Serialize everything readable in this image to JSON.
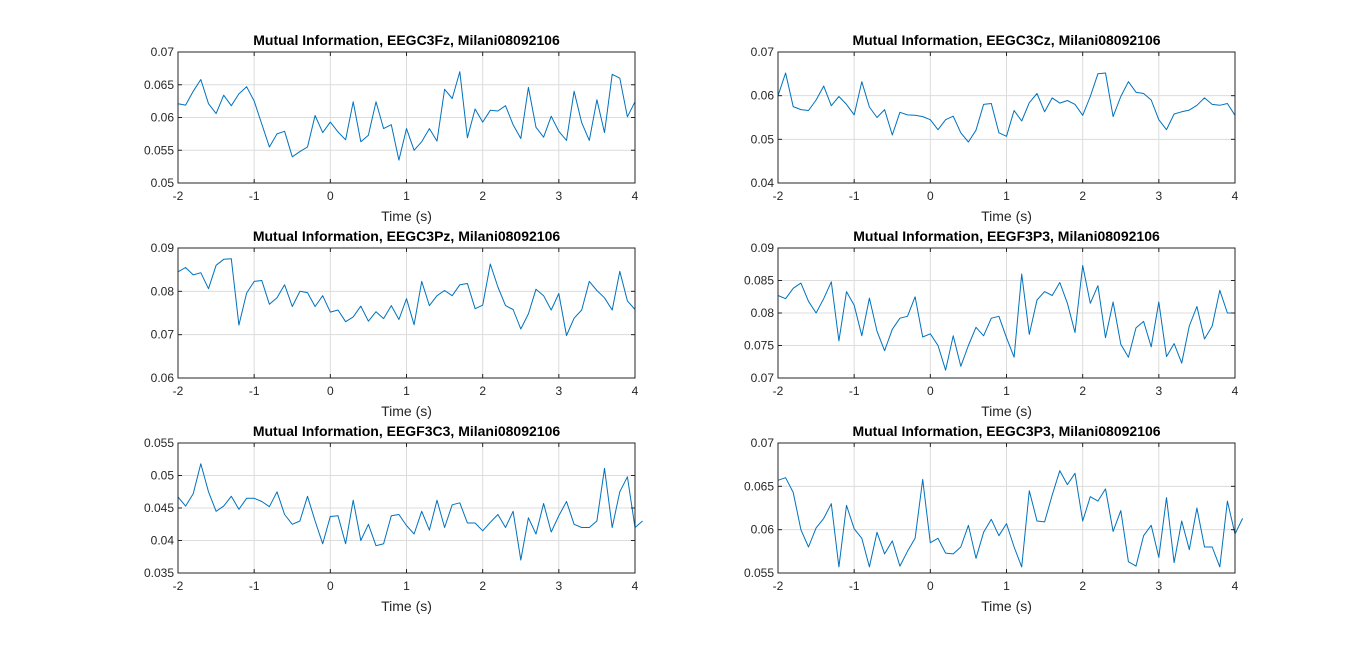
{
  "figure": {
    "background": "#ffffff",
    "line_color": "#0072bd",
    "grid_color": "#dcdcdc",
    "axis_color": "#262626"
  },
  "chart_data": [
    {
      "type": "line",
      "title": "Mutual Information, EEGC3Fz, Milani08092106",
      "xlabel": "Time (s)",
      "ylabel": "",
      "xlim": [
        -2,
        4
      ],
      "ylim": [
        0.05,
        0.07
      ],
      "xticks": [
        "-2",
        "-1",
        "0",
        "1",
        "2",
        "3",
        "4"
      ],
      "yticks": [
        "0.05",
        "0.055",
        "0.06",
        "0.065",
        "0.07"
      ],
      "grid": true,
      "x_start": -2,
      "x_step": 0.1,
      "values": [
        0.0621,
        0.0619,
        0.064,
        0.0658,
        0.0621,
        0.0606,
        0.0634,
        0.0618,
        0.0636,
        0.0647,
        0.0625,
        0.059,
        0.0555,
        0.0575,
        0.0579,
        0.054,
        0.0548,
        0.0555,
        0.0603,
        0.0577,
        0.0593,
        0.0578,
        0.0566,
        0.0624,
        0.0563,
        0.0573,
        0.0624,
        0.0583,
        0.0589,
        0.0535,
        0.0583,
        0.055,
        0.0563,
        0.0583,
        0.0564,
        0.0643,
        0.0629,
        0.067,
        0.0569,
        0.0613,
        0.0593,
        0.0611,
        0.061,
        0.0618,
        0.0589,
        0.0568,
        0.0646,
        0.0585,
        0.057,
        0.0602,
        0.0579,
        0.0565,
        0.064,
        0.0592,
        0.0565,
        0.0627,
        0.0577,
        0.0666,
        0.066,
        0.0601,
        0.0624
      ]
    },
    {
      "type": "line",
      "title": "Mutual Information, EEGC3Cz, Milani08092106",
      "xlabel": "Time (s)",
      "ylabel": "",
      "xlim": [
        -2,
        4
      ],
      "ylim": [
        0.04,
        0.07
      ],
      "xticks": [
        "-2",
        "-1",
        "0",
        "1",
        "2",
        "3",
        "4"
      ],
      "yticks": [
        "0.04",
        "0.05",
        "0.06",
        "0.07"
      ],
      "grid": true,
      "x_start": -2,
      "x_step": 0.1,
      "values": [
        0.06,
        0.0652,
        0.0575,
        0.0568,
        0.0566,
        0.059,
        0.0622,
        0.0577,
        0.0598,
        0.058,
        0.0556,
        0.0632,
        0.0574,
        0.055,
        0.0568,
        0.051,
        0.0562,
        0.0556,
        0.0555,
        0.0552,
        0.0545,
        0.0522,
        0.0545,
        0.0553,
        0.0515,
        0.0494,
        0.0521,
        0.058,
        0.0582,
        0.0515,
        0.0507,
        0.0566,
        0.0542,
        0.0584,
        0.0605,
        0.0563,
        0.0595,
        0.0583,
        0.0589,
        0.058,
        0.0555,
        0.0598,
        0.065,
        0.0652,
        0.0552,
        0.0598,
        0.0632,
        0.0608,
        0.0605,
        0.059,
        0.0545,
        0.0522,
        0.0558,
        0.0563,
        0.0567,
        0.0578,
        0.0595,
        0.058,
        0.0578,
        0.0582,
        0.0555
      ]
    },
    {
      "type": "line",
      "title": "Mutual Information, EEGC3Pz, Milani08092106",
      "xlabel": "Time (s)",
      "ylabel": "",
      "xlim": [
        -2,
        4
      ],
      "ylim": [
        0.06,
        0.09
      ],
      "xticks": [
        "-2",
        "-1",
        "0",
        "1",
        "2",
        "3",
        "4"
      ],
      "yticks": [
        "0.06",
        "0.07",
        "0.08",
        "0.09"
      ],
      "grid": true,
      "x_start": -2,
      "x_step": 0.1,
      "values": [
        0.0845,
        0.0855,
        0.0838,
        0.0843,
        0.0806,
        0.086,
        0.0874,
        0.0875,
        0.0722,
        0.0796,
        0.0823,
        0.0825,
        0.077,
        0.0785,
        0.0815,
        0.0765,
        0.08,
        0.0797,
        0.0765,
        0.079,
        0.0752,
        0.0757,
        0.073,
        0.0741,
        0.0766,
        0.0731,
        0.0753,
        0.0737,
        0.0767,
        0.0735,
        0.0783,
        0.0723,
        0.0823,
        0.0767,
        0.079,
        0.0802,
        0.079,
        0.0815,
        0.0818,
        0.076,
        0.0768,
        0.0863,
        0.081,
        0.0767,
        0.0758,
        0.0713,
        0.0748,
        0.0805,
        0.079,
        0.0757,
        0.0795,
        0.0698,
        0.0738,
        0.0757,
        0.0823,
        0.0802,
        0.0785,
        0.0757,
        0.0846,
        0.0778,
        0.0758
      ]
    },
    {
      "type": "line",
      "title": "Mutual Information, EEGF3P3, Milani08092106",
      "xlabel": "Time (s)",
      "ylabel": "",
      "xlim": [
        -2,
        4
      ],
      "ylim": [
        0.07,
        0.09
      ],
      "xticks": [
        "-2",
        "-1",
        "0",
        "1",
        "2",
        "3",
        "4"
      ],
      "yticks": [
        "0.07",
        "0.075",
        "0.08",
        "0.085",
        "0.09"
      ],
      "grid": true,
      "x_start": -2,
      "x_step": 0.1,
      "values": [
        0.0827,
        0.0822,
        0.0838,
        0.0846,
        0.0818,
        0.08,
        0.0822,
        0.0848,
        0.0757,
        0.0833,
        0.0812,
        0.0765,
        0.0823,
        0.0772,
        0.0742,
        0.0775,
        0.0792,
        0.0795,
        0.0825,
        0.0763,
        0.0768,
        0.075,
        0.0712,
        0.0765,
        0.0718,
        0.075,
        0.0778,
        0.0765,
        0.0792,
        0.0795,
        0.0762,
        0.0732,
        0.086,
        0.0767,
        0.082,
        0.0833,
        0.0827,
        0.0847,
        0.0815,
        0.077,
        0.0873,
        0.0815,
        0.0842,
        0.0762,
        0.0817,
        0.0752,
        0.0732,
        0.0777,
        0.0787,
        0.0748,
        0.0817,
        0.0733,
        0.0753,
        0.0723,
        0.078,
        0.081,
        0.076,
        0.078,
        0.0835,
        0.08,
        0.08
      ]
    },
    {
      "type": "line",
      "title": "Mutual Information, EEGF3C3, Milani08092106",
      "xlabel": "Time (s)",
      "ylabel": "",
      "xlim": [
        -2,
        4
      ],
      "ylim": [
        0.035,
        0.055
      ],
      "xticks": [
        "-2",
        "-1",
        "0",
        "1",
        "2",
        "3",
        "4"
      ],
      "yticks": [
        "0.035",
        "0.04",
        "0.045",
        "0.05",
        "0.055"
      ],
      "grid": true,
      "x_start": -2,
      "x_step": 0.1,
      "values": [
        0.0467,
        0.0453,
        0.0472,
        0.0518,
        0.0475,
        0.0445,
        0.0453,
        0.0468,
        0.0448,
        0.0465,
        0.0465,
        0.046,
        0.0452,
        0.0475,
        0.044,
        0.0425,
        0.043,
        0.0468,
        0.043,
        0.0395,
        0.0437,
        0.0438,
        0.0395,
        0.0462,
        0.04,
        0.0425,
        0.0392,
        0.0395,
        0.0438,
        0.044,
        0.0423,
        0.041,
        0.0445,
        0.0416,
        0.0462,
        0.042,
        0.0455,
        0.0458,
        0.0427,
        0.0427,
        0.0415,
        0.0428,
        0.044,
        0.042,
        0.0445,
        0.037,
        0.0435,
        0.041,
        0.0457,
        0.0413,
        0.0438,
        0.046,
        0.0425,
        0.042,
        0.042,
        0.043,
        0.0511,
        0.042,
        0.0475,
        0.0498,
        0.042,
        0.043
      ]
    },
    {
      "type": "line",
      "title": "Mutual Information, EEGC3P3, Milani08092106",
      "xlabel": "Time (s)",
      "ylabel": "",
      "xlim": [
        -2,
        4
      ],
      "ylim": [
        0.055,
        0.07
      ],
      "xticks": [
        "-2",
        "-1",
        "0",
        "1",
        "2",
        "3",
        "4"
      ],
      "yticks": [
        "0.055",
        "0.06",
        "0.065",
        "0.07"
      ],
      "grid": true,
      "x_start": -2,
      "x_step": 0.1,
      "values": [
        0.0657,
        0.066,
        0.0643,
        0.06,
        0.058,
        0.0602,
        0.0613,
        0.063,
        0.0557,
        0.0628,
        0.0601,
        0.059,
        0.0557,
        0.0597,
        0.0572,
        0.0587,
        0.0558,
        0.0575,
        0.059,
        0.0658,
        0.0585,
        0.059,
        0.0573,
        0.0572,
        0.058,
        0.0605,
        0.0567,
        0.0597,
        0.0612,
        0.0593,
        0.0607,
        0.058,
        0.0557,
        0.0645,
        0.061,
        0.0609,
        0.064,
        0.0668,
        0.0652,
        0.0665,
        0.061,
        0.0638,
        0.0633,
        0.0647,
        0.0598,
        0.0622,
        0.0563,
        0.0558,
        0.0593,
        0.0605,
        0.0568,
        0.0637,
        0.0562,
        0.061,
        0.0577,
        0.0625,
        0.058,
        0.058,
        0.0557,
        0.0633,
        0.0595,
        0.0613
      ]
    }
  ]
}
